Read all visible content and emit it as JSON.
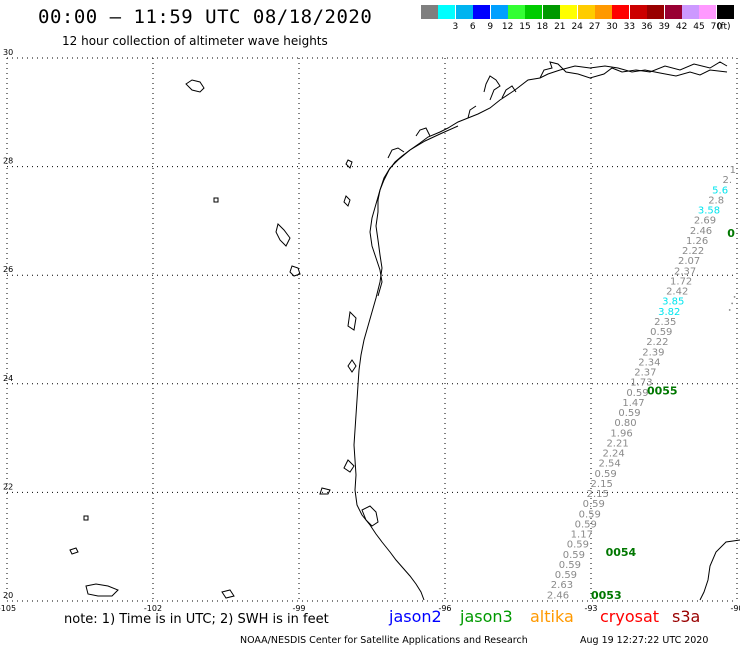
{
  "header": {
    "title": "00:00 – 11:59 UTC 08/18/2020",
    "subtitle": "12 hour collection of altimeter wave heights"
  },
  "color_scale": {
    "unit": "(ft)",
    "bins": [
      {
        "label": "",
        "color": "#7f7f7f"
      },
      {
        "label": "3",
        "color": "#00ffff"
      },
      {
        "label": "6",
        "color": "#00b4f0"
      },
      {
        "label": "9",
        "color": "#0000ff"
      },
      {
        "label": "12",
        "color": "#00a0ff"
      },
      {
        "label": "15",
        "color": "#33ff33"
      },
      {
        "label": "18",
        "color": "#00cc00"
      },
      {
        "label": "21",
        "color": "#009900"
      },
      {
        "label": "24",
        "color": "#ffff00"
      },
      {
        "label": "27",
        "color": "#ffcc00"
      },
      {
        "label": "30",
        "color": "#ff9900"
      },
      {
        "label": "33",
        "color": "#ff0000"
      },
      {
        "label": "36",
        "color": "#cc0000"
      },
      {
        "label": "39",
        "color": "#990000"
      },
      {
        "label": "42",
        "color": "#990033"
      },
      {
        "label": "45",
        "color": "#cc99ff"
      },
      {
        "label": "70",
        "color": "#ff99ff"
      },
      {
        "label": "",
        "color": "#000000"
      }
    ]
  },
  "map": {
    "lon_range": [
      -105,
      -90
    ],
    "lat_range": [
      20,
      30
    ],
    "lat_labels": [
      "30",
      "28",
      "26",
      "24",
      "22",
      "20"
    ],
    "lon_labels": [
      "-105",
      "-102",
      "-99",
      "-96",
      "-93",
      "-90"
    ],
    "colors": {
      "coast": "#000000",
      "grid": "#000000",
      "track": "#8a8a8a",
      "time": "#007700",
      "highlight": "#00e5ee"
    }
  },
  "track_a": {
    "values": [
      {
        "v": "1",
        "c": "gray"
      },
      {
        "v": "2.",
        "c": "gray"
      },
      {
        "v": "5.6",
        "c": "cyan"
      },
      {
        "v": "2.8",
        "c": "gray"
      },
      {
        "v": "3.58",
        "c": "cyan"
      },
      {
        "v": "2.69",
        "c": "gray"
      },
      {
        "v": "2.46",
        "c": "gray"
      },
      {
        "v": "1.26",
        "c": "gray"
      },
      {
        "v": "2.22",
        "c": "gray"
      },
      {
        "v": "2.07",
        "c": "gray"
      },
      {
        "v": "2.37",
        "c": "gray"
      },
      {
        "v": "1.72",
        "c": "gray"
      },
      {
        "v": "2.42",
        "c": "gray"
      },
      {
        "v": "3.85",
        "c": "cyan"
      },
      {
        "v": "3.82",
        "c": "cyan"
      },
      {
        "v": "2.35",
        "c": "gray"
      },
      {
        "v": "0.59",
        "c": "gray"
      },
      {
        "v": "2.22",
        "c": "gray"
      },
      {
        "v": "2.39",
        "c": "gray"
      },
      {
        "v": "2.34",
        "c": "gray"
      },
      {
        "v": "2.37",
        "c": "gray"
      },
      {
        "v": "1.73",
        "c": "gray"
      },
      {
        "v": "0.59",
        "c": "gray"
      },
      {
        "v": "1.47",
        "c": "gray"
      },
      {
        "v": "0.59",
        "c": "gray"
      },
      {
        "v": "0.80",
        "c": "gray"
      },
      {
        "v": "1.96",
        "c": "gray"
      },
      {
        "v": "2.21",
        "c": "gray"
      },
      {
        "v": "2.24",
        "c": "gray"
      },
      {
        "v": "2.54",
        "c": "gray"
      },
      {
        "v": "0.59",
        "c": "gray"
      },
      {
        "v": "2.15",
        "c": "gray"
      },
      {
        "v": "2.15",
        "c": "gray"
      },
      {
        "v": "0.59",
        "c": "gray"
      },
      {
        "v": "0.59",
        "c": "gray"
      },
      {
        "v": "0.59",
        "c": "gray"
      },
      {
        "v": "1.17",
        "c": "gray"
      },
      {
        "v": "0.59",
        "c": "gray"
      },
      {
        "v": "0.59",
        "c": "gray"
      },
      {
        "v": "0.59",
        "c": "gray"
      },
      {
        "v": "0.59",
        "c": "gray"
      },
      {
        "v": "2.63",
        "c": "gray"
      },
      {
        "v": "2.46",
        "c": "gray"
      }
    ]
  },
  "time_labels": [
    {
      "text": "0",
      "lon": -90.2,
      "lat": 26.7
    },
    {
      "text": "0055",
      "lon": -91.85,
      "lat": 23.8
    },
    {
      "text": "0054",
      "lon": -92.7,
      "lat": 20.83
    },
    {
      "text": "0053",
      "lon": -93.0,
      "lat": 20.04
    }
  ],
  "footer": {
    "note": "note: 1) Time is in UTC; 2) SWH is in feet",
    "missions": [
      {
        "name": "jason2",
        "color": "#0000ff"
      },
      {
        "name": "jason3",
        "color": "#009900"
      },
      {
        "name": "altika",
        "color": "#ff9900"
      },
      {
        "name": "cryosat",
        "color": "#ff0000"
      },
      {
        "name": "s3a",
        "color": "#990000"
      }
    ],
    "credit": "NOAA/NESDIS Center for Satellite Applications and Research",
    "timestamp": "Aug 19 12:27:22 UTC 2020"
  }
}
